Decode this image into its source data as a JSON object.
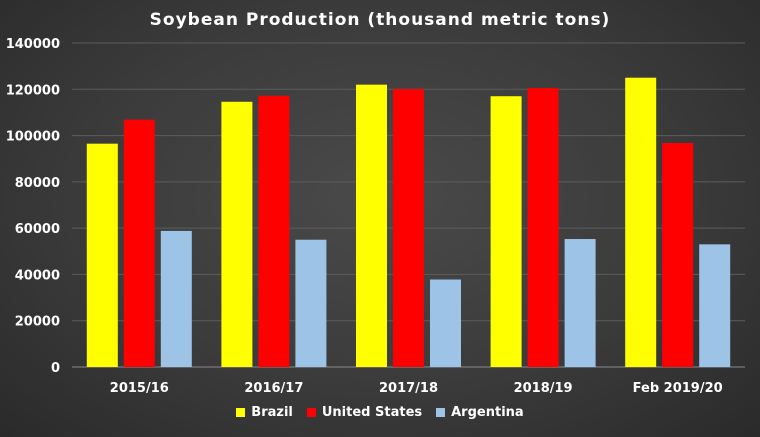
{
  "chart_data": {
    "type": "bar",
    "title": "Soybean Production (thousand metric tons)",
    "xlabel": "",
    "ylabel": "",
    "ylim": [
      0,
      140000
    ],
    "yticks": [
      0,
      20000,
      40000,
      60000,
      80000,
      100000,
      120000,
      140000
    ],
    "grid": true,
    "legend_position": "bottom",
    "categories": [
      "2015/16",
      "2016/17",
      "2017/18",
      "2018/19",
      "Feb 2019/20"
    ],
    "series": [
      {
        "name": "Brazil",
        "color": "#ffff00",
        "values": [
          96500,
          114600,
          122000,
          117000,
          125000
        ]
      },
      {
        "name": "United States",
        "color": "#ff0000",
        "values": [
          106900,
          117200,
          120100,
          120500,
          96800
        ]
      },
      {
        "name": "Argentina",
        "color": "#9dc3e6",
        "values": [
          58800,
          55000,
          37800,
          55300,
          53000
        ]
      }
    ]
  }
}
